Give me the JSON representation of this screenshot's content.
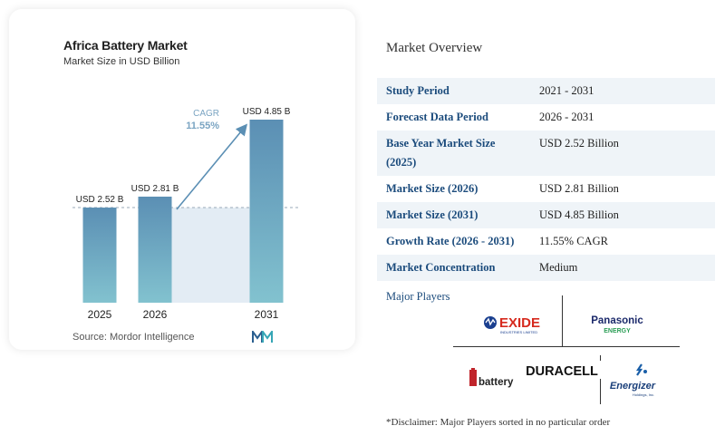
{
  "chart": {
    "title": "Africa Battery Market",
    "subtitle": "Market Size in USD Billion",
    "source": "Source:  Mordor Intelligence",
    "cagr_label": "CAGR",
    "cagr_value": "11.55%",
    "colors": {
      "bar_top": "#5b8fb4",
      "bar_bottom": "#82c2cf",
      "band": "#e3ecf4",
      "arrow": "#5b8fb4"
    }
  },
  "chart_data": {
    "type": "bar",
    "categories": [
      "2025",
      "2026",
      "2031"
    ],
    "values": [
      2.52,
      2.81,
      4.85
    ],
    "data_labels": [
      "USD 2.52 B",
      "USD 2.81 B",
      "USD 4.85 B"
    ],
    "title": "Africa Battery Market",
    "subtitle": "Market Size in USD Billion",
    "ylim": [
      0,
      5
    ],
    "annotation": "CAGR 11.55%",
    "grid": false,
    "legend": "none"
  },
  "overview": {
    "heading": "Market Overview",
    "rows": [
      {
        "key": "Study Period",
        "value": "2021 - 2031"
      },
      {
        "key": "Forecast Data Period",
        "value": "2026 - 2031"
      },
      {
        "key": "Base Year Market Size (2025)",
        "value": "USD 2.52 Billion"
      },
      {
        "key": "Market Size (2026)",
        "value": "USD 2.81 Billion"
      },
      {
        "key": "Market Size (2031)",
        "value": "USD 4.85 Billion"
      },
      {
        "key": "Growth Rate (2026 - 2031)",
        "value": "11.55% CAGR"
      },
      {
        "key": "Market Concentration",
        "value": "Medium"
      }
    ]
  },
  "players": {
    "heading": "Major Players",
    "exide_name": "EXIDE",
    "exide_sub": "INDUSTRIES LIMITED",
    "panasonic_name": "Panasonic",
    "panasonic_sub": "ENERGY",
    "duracell": "DURACELL",
    "battery_name": "battery",
    "energizer_name": "Energizer",
    "energizer_sub": "Holdings, Inc."
  },
  "disclaimer": "*Disclaimer: Major Players sorted in no particular order"
}
